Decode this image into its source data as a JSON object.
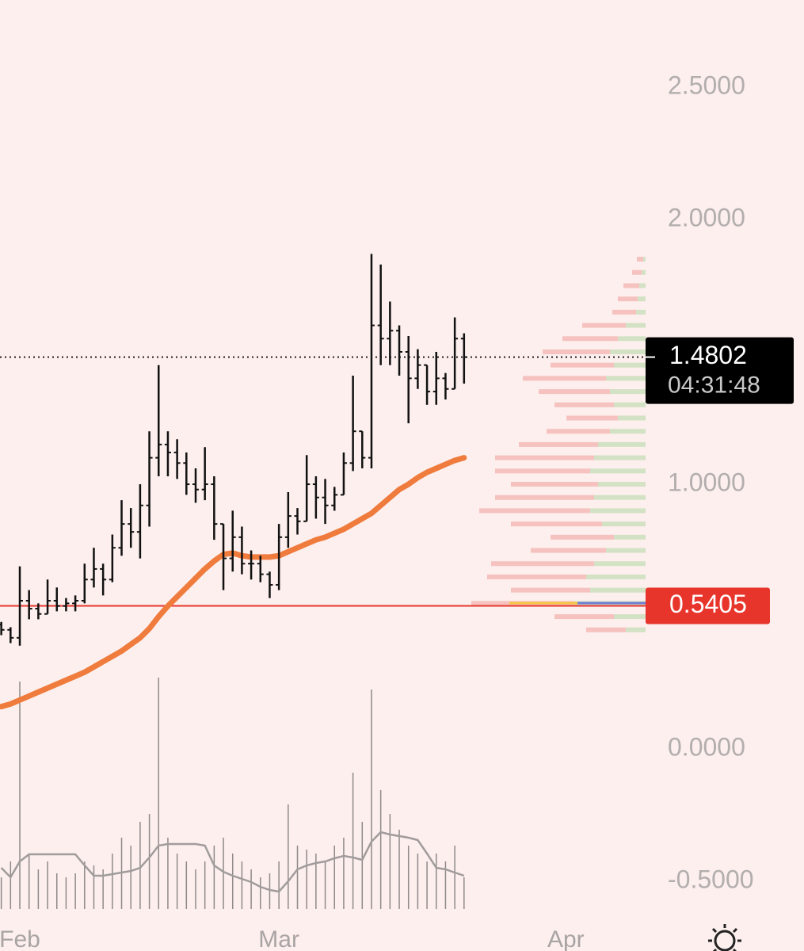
{
  "chart_data": {
    "type": "ohlc",
    "x": [
      -2,
      -1,
      0,
      1,
      2,
      3,
      4,
      5,
      6,
      7,
      8,
      9,
      10,
      11,
      12,
      13,
      14,
      15,
      16,
      17,
      18,
      19,
      20,
      21,
      22,
      23,
      24,
      25,
      26,
      27,
      28,
      29,
      30,
      31,
      32,
      33,
      34,
      35,
      36,
      37,
      38,
      39,
      40,
      41,
      42,
      43,
      44,
      45,
      46,
      47,
      48
    ],
    "open": [
      0.47,
      0.45,
      0.42,
      0.56,
      0.53,
      0.51,
      0.56,
      0.54,
      0.55,
      0.56,
      0.64,
      0.68,
      0.64,
      0.76,
      0.85,
      0.82,
      0.92,
      1.1,
      1.15,
      1.12,
      1.08,
      1.0,
      0.98,
      1.0,
      0.85,
      0.72,
      0.8,
      0.7,
      0.7,
      0.66,
      0.62,
      0.8,
      0.88,
      0.86,
      1.0,
      0.95,
      0.92,
      0.96,
      1.08,
      1.2,
      1.1,
      1.6,
      1.55,
      1.58,
      1.5,
      1.4,
      1.45,
      1.35,
      1.4,
      1.36,
      1.55
    ],
    "high": [
      0.48,
      0.46,
      0.69,
      0.6,
      0.55,
      0.64,
      0.61,
      0.57,
      0.58,
      0.7,
      0.76,
      0.7,
      0.81,
      0.94,
      0.91,
      1.0,
      1.2,
      1.45,
      1.2,
      1.17,
      1.12,
      1.06,
      1.14,
      1.03,
      0.85,
      0.9,
      0.84,
      0.75,
      0.73,
      0.67,
      0.85,
      0.97,
      0.91,
      1.11,
      1.03,
      1.02,
      0.99,
      1.12,
      1.41,
      1.2,
      1.87,
      1.83,
      1.69,
      1.6,
      1.56,
      1.51,
      1.45,
      1.5,
      1.42,
      1.63,
      1.57
    ],
    "low": [
      0.43,
      0.4,
      0.39,
      0.49,
      0.49,
      0.51,
      0.52,
      0.52,
      0.52,
      0.55,
      0.61,
      0.58,
      0.63,
      0.73,
      0.76,
      0.72,
      0.84,
      1.03,
      1.03,
      1.02,
      0.96,
      0.93,
      0.94,
      0.79,
      0.6,
      0.67,
      0.66,
      0.64,
      0.63,
      0.57,
      0.6,
      0.76,
      0.81,
      0.86,
      0.87,
      0.85,
      0.9,
      0.96,
      1.05,
      1.06,
      1.06,
      1.45,
      1.45,
      1.41,
      1.23,
      1.36,
      1.3,
      1.3,
      1.32,
      1.36,
      1.38
    ],
    "close": [
      0.45,
      0.42,
      0.56,
      0.53,
      0.51,
      0.56,
      0.54,
      0.55,
      0.56,
      0.64,
      0.68,
      0.64,
      0.76,
      0.85,
      0.82,
      0.92,
      1.1,
      1.15,
      1.12,
      1.08,
      1.0,
      0.98,
      1.0,
      0.85,
      0.72,
      0.8,
      0.7,
      0.7,
      0.66,
      0.62,
      0.8,
      0.88,
      0.86,
      1.0,
      0.95,
      0.92,
      0.96,
      1.08,
      1.2,
      1.1,
      1.6,
      1.55,
      1.58,
      1.5,
      1.4,
      1.45,
      1.35,
      1.4,
      1.36,
      1.55,
      1.4802
    ],
    "color": "#111111",
    "ma": {
      "color": "#ef7b3d",
      "values": [
        0.16,
        0.17,
        0.185,
        0.2,
        0.215,
        0.23,
        0.245,
        0.26,
        0.275,
        0.29,
        0.31,
        0.33,
        0.35,
        0.37,
        0.395,
        0.42,
        0.455,
        0.5,
        0.54,
        0.575,
        0.61,
        0.645,
        0.68,
        0.71,
        0.735,
        0.74,
        0.73,
        0.725,
        0.725,
        0.725,
        0.73,
        0.745,
        0.76,
        0.775,
        0.79,
        0.8,
        0.815,
        0.83,
        0.85,
        0.87,
        0.89,
        0.92,
        0.95,
        0.98,
        1.0,
        1.025,
        1.045,
        1.06,
        1.075,
        1.09,
        1.1
      ]
    },
    "volume": {
      "color": "#8f8a8a",
      "ma_color": "#a19c9c",
      "lim": [
        0,
        300
      ],
      "values": [
        40,
        60,
        287,
        70,
        50,
        60,
        45,
        40,
        45,
        60,
        55,
        50,
        70,
        90,
        80,
        110,
        120,
        292,
        90,
        70,
        60,
        50,
        60,
        80,
        90,
        70,
        60,
        50,
        40,
        45,
        60,
        132,
        80,
        75,
        70,
        60,
        80,
        90,
        172,
        110,
        277,
        150,
        120,
        100,
        80,
        70,
        60,
        70,
        60,
        80,
        40
      ],
      "ma_values": [
        52,
        40,
        60,
        69,
        69,
        69,
        69,
        69,
        69,
        55,
        42,
        42,
        44,
        46,
        48,
        52,
        65,
        80,
        82,
        82,
        82,
        82,
        80,
        55,
        47,
        42,
        38,
        34,
        28,
        24,
        22,
        35,
        50,
        55,
        58,
        60,
        64,
        67,
        65,
        62,
        85,
        97,
        94,
        92,
        90,
        87,
        70,
        52,
        50,
        46,
        42
      ]
    },
    "profile": {
      "buy_color": "#d3e2c4",
      "sell_color": "#f6c2c0",
      "lim": [
        0,
        180
      ],
      "levels": [
        1.85,
        1.8,
        1.75,
        1.7,
        1.65,
        1.6,
        1.55,
        1.5,
        1.45,
        1.4,
        1.35,
        1.3,
        1.25,
        1.2,
        1.15,
        1.1,
        1.05,
        1.0,
        0.95,
        0.9,
        0.85,
        0.8,
        0.75,
        0.7,
        0.65,
        0.6,
        0.55,
        0.5,
        0.45
      ],
      "buy": [
        3,
        5,
        8,
        10,
        12,
        25,
        35,
        45,
        40,
        50,
        45,
        40,
        35,
        45,
        60,
        65,
        70,
        60,
        65,
        70,
        55,
        40,
        50,
        65,
        75,
        70,
        90,
        40,
        25
      ],
      "sell": [
        8,
        12,
        20,
        25,
        30,
        55,
        70,
        85,
        80,
        105,
        90,
        75,
        65,
        80,
        100,
        125,
        120,
        110,
        125,
        140,
        115,
        80,
        95,
        130,
        125,
        100,
        130,
        75,
        50
      ]
    },
    "ylim": [
      -0.763,
      2.829
    ],
    "yticks": [
      {
        "value": 2.5,
        "label": "2.5000"
      },
      {
        "value": 2,
        "label": "2.0000"
      },
      {
        "value": 1,
        "label": "1.0000"
      },
      {
        "value": 0,
        "label": "0.0000"
      },
      {
        "value": -0.5,
        "label": "-0.5000"
      }
    ],
    "xlim": [
      -2.14,
      68.9
    ],
    "xticks": [
      {
        "value": 0,
        "label": "Feb"
      },
      {
        "value": 28,
        "label": "Mar"
      },
      {
        "value": 59,
        "label": "Apr"
      }
    ],
    "last_price": 1.4802,
    "countdown": "04:31:48",
    "level": 0.5405,
    "level_color": "#e8352b"
  }
}
